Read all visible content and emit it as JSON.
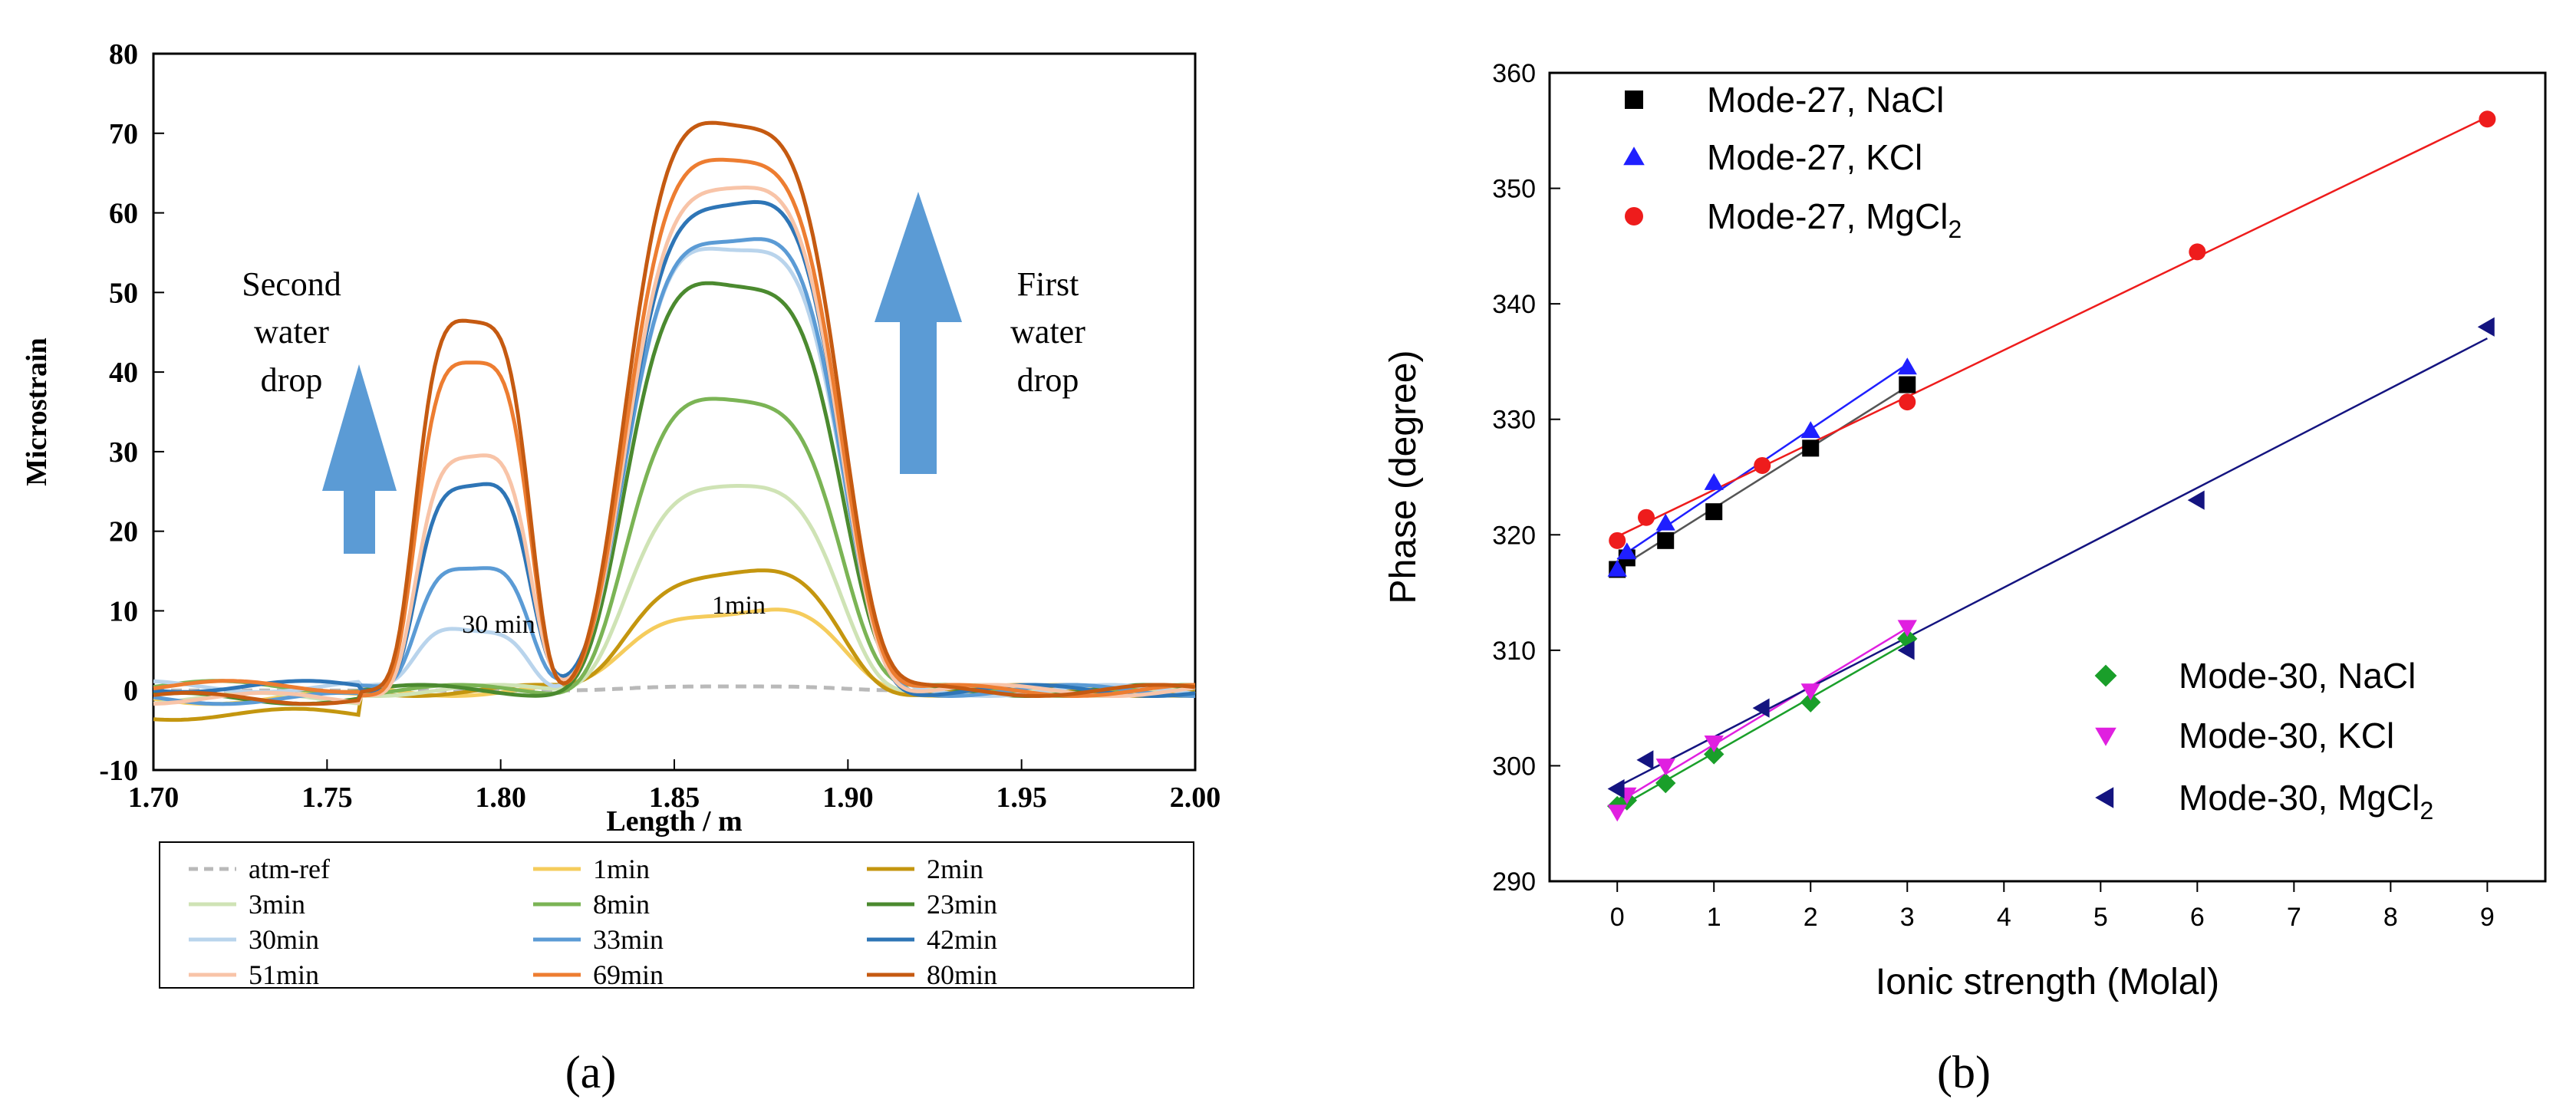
{
  "panel_labels": {
    "a": "(a)",
    "b": "(b)"
  },
  "chart_data": [
    {
      "type": "line",
      "panel": "(a)",
      "xlabel": "Length / m",
      "ylabel": "Microstrain",
      "xlim": [
        1.7,
        2.0
      ],
      "ylim": [
        -10,
        80
      ],
      "xticks": [
        1.7,
        1.75,
        1.8,
        1.85,
        1.9,
        1.95,
        2.0
      ],
      "xtick_labels": [
        "1.70",
        "1.75",
        "1.80",
        "1.85",
        "1.90",
        "1.95",
        "2.00"
      ],
      "yticks": [
        -10,
        0,
        10,
        20,
        30,
        40,
        50,
        60,
        70,
        80
      ],
      "ytick_labels": [
        "-10",
        "0",
        "10",
        "20",
        "30",
        "40",
        "50",
        "60",
        "70",
        "80"
      ],
      "annotations": {
        "second_drop": [
          "Second",
          "water",
          "drop"
        ],
        "first_drop": [
          "First",
          "water",
          "drop"
        ],
        "label_30min": "30 min",
        "label_1min": "1min"
      },
      "series": [
        {
          "name": "atm-ref",
          "color": "#b9b9b9",
          "dash": true,
          "peak1": 0,
          "peak2": 0.5
        },
        {
          "name": "1min",
          "color": "#f5cc5c",
          "peak1": 0,
          "peak2": 10
        },
        {
          "name": "2min",
          "color": "#c4960f",
          "peak1": 0,
          "peak2": 14.5
        },
        {
          "name": "3min",
          "color": "#cfe3b5",
          "peak1": 0,
          "peak2": 25
        },
        {
          "name": "8min",
          "color": "#7bb455",
          "peak1": 0,
          "peak2": 36
        },
        {
          "name": "23min",
          "color": "#4b8a2f",
          "peak1": 0,
          "peak2": 51
        },
        {
          "name": "30min",
          "color": "#b9d4ec",
          "peak1": 8,
          "peak2": 56
        },
        {
          "name": "33min",
          "color": "#5b9bd5",
          "peak1": 16,
          "peak2": 57
        },
        {
          "name": "42min",
          "color": "#2e75b6",
          "peak1": 26,
          "peak2": 61
        },
        {
          "name": "51min",
          "color": "#f8c4a8",
          "peak1": 29,
          "peak2": 62.5
        },
        {
          "name": "69min",
          "color": "#ed7d31",
          "peak1": 40.5,
          "peak2": 66
        },
        {
          "name": "80min",
          "color": "#c55a11",
          "peak1": 46,
          "peak2": 71
        }
      ]
    },
    {
      "type": "scatter",
      "panel": "(b)",
      "xlabel": "Ionic strength (Molal)",
      "ylabel": "Phase (degree)",
      "xlim": [
        -0.7,
        9.6
      ],
      "ylim": [
        290,
        360
      ],
      "xticks": [
        0,
        1,
        2,
        3,
        4,
        5,
        6,
        7,
        8,
        9
      ],
      "xtick_labels": [
        "0",
        "1",
        "2",
        "3",
        "4",
        "5",
        "6",
        "7",
        "8",
        "9"
      ],
      "yticks": [
        290,
        300,
        310,
        320,
        330,
        340,
        350,
        360
      ],
      "ytick_labels": [
        "290",
        "300",
        "310",
        "320",
        "330",
        "340",
        "350",
        "360"
      ],
      "series": [
        {
          "name": "Mode-27, NaCl",
          "legend": {
            "main": "Mode-27, NaCl",
            "sub": ""
          },
          "marker": "square",
          "color": "#000000",
          "line_color": "#555555",
          "x": [
            0,
            0.1,
            0.5,
            1,
            2,
            3
          ],
          "y": [
            317,
            318,
            319.5,
            322,
            327.5,
            333
          ]
        },
        {
          "name": "Mode-27, KCl",
          "legend": {
            "main": "Mode-27, KCl",
            "sub": ""
          },
          "marker": "triangle-up",
          "color": "#1f1fff",
          "line_color": "#1f1fff",
          "x": [
            0,
            0.1,
            0.5,
            1,
            2,
            3
          ],
          "y": [
            317,
            318.5,
            321,
            324.5,
            329,
            334.5
          ]
        },
        {
          "name": "Mode-27, MgCl2",
          "legend": {
            "main": "Mode-27, MgCl",
            "sub": "2"
          },
          "marker": "circle",
          "color": "#ee1c1c",
          "line_color": "#ee1c1c",
          "x": [
            0,
            0.3,
            1.5,
            3,
            6,
            9
          ],
          "y": [
            319.5,
            321.5,
            326,
            331.5,
            344.5,
            356
          ]
        },
        {
          "name": "Mode-30, NaCl",
          "legend": {
            "main": "Mode-30, NaCl",
            "sub": ""
          },
          "marker": "diamond",
          "color": "#1a9f2a",
          "line_color": "#1a9f2a",
          "x": [
            0,
            0.1,
            0.5,
            1,
            2,
            3
          ],
          "y": [
            296.5,
            297,
            298.5,
            301,
            305.5,
            311
          ]
        },
        {
          "name": "Mode-30, KCl",
          "legend": {
            "main": "Mode-30, KCl",
            "sub": ""
          },
          "marker": "triangle-down",
          "color": "#e020e0",
          "line_color": "#e020e0",
          "x": [
            0,
            0.1,
            0.5,
            1,
            2,
            3
          ],
          "y": [
            296,
            297.5,
            300,
            302,
            306.5,
            312
          ]
        },
        {
          "name": "Mode-30, MgCl2",
          "legend": {
            "main": "Mode-30, MgCl",
            "sub": "2"
          },
          "marker": "triangle-left",
          "color": "#141480",
          "line_color": "#141480",
          "x": [
            0,
            0.3,
            1.5,
            3,
            6,
            9
          ],
          "y": [
            298,
            300.5,
            305,
            310,
            323,
            338
          ]
        }
      ]
    }
  ]
}
